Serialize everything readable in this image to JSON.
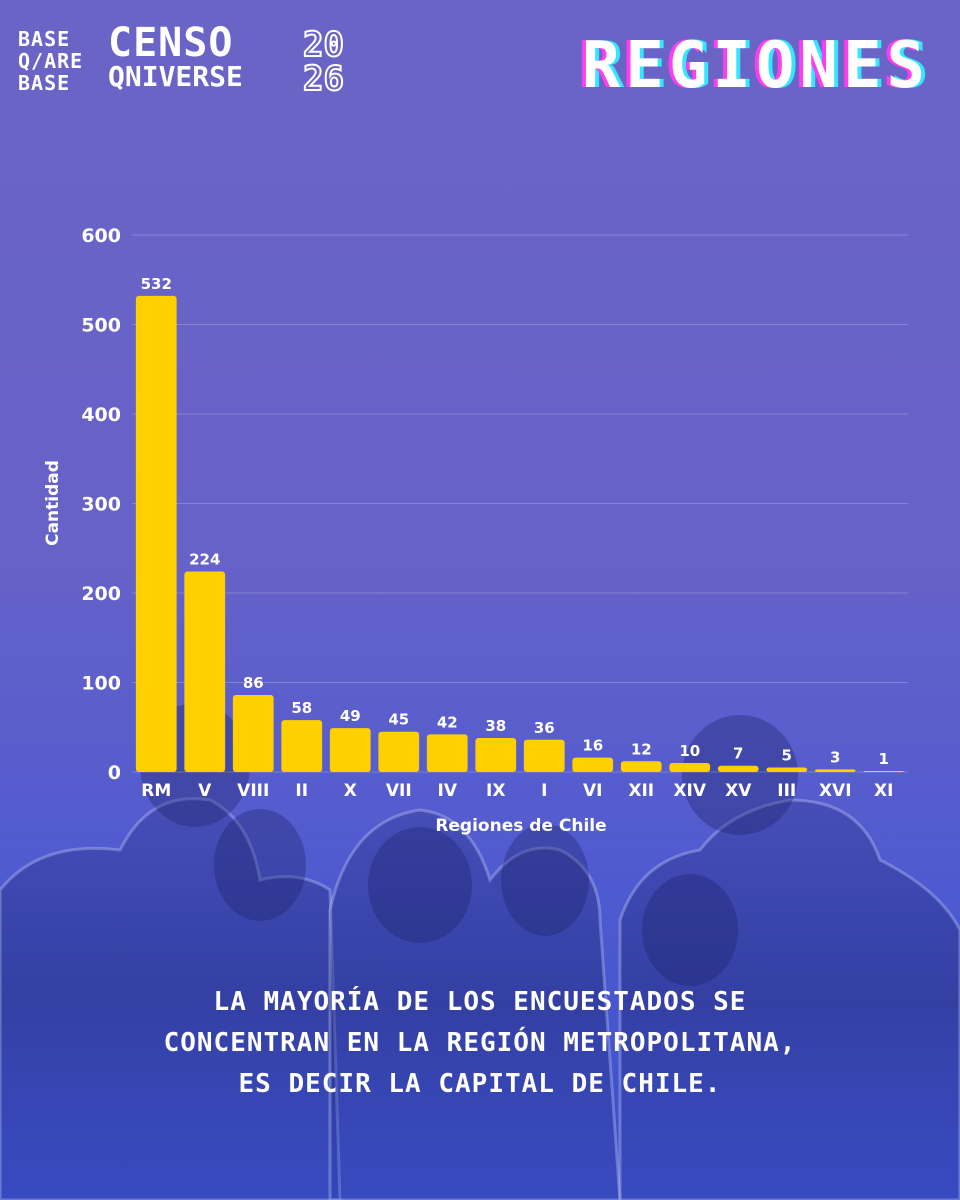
{
  "logo": {
    "small_lines": [
      "BASE",
      "Q/ARE",
      "BASE"
    ],
    "line1": "CENSO",
    "line2": "QNIVERSE",
    "year_top": "20",
    "year_bottom": "26"
  },
  "header": {
    "title": "REGIONES"
  },
  "chart_data": {
    "type": "bar",
    "xlabel": "Regiones de Chile",
    "ylabel": "Cantidad",
    "ylim": [
      0,
      600
    ],
    "yticks": [
      0,
      100,
      200,
      300,
      400,
      500,
      600
    ],
    "grid": true,
    "categories": [
      "RM",
      "V",
      "VIII",
      "II",
      "X",
      "VII",
      "IV",
      "IX",
      "I",
      "VI",
      "XII",
      "XIV",
      "XV",
      "III",
      "XVI",
      "XI"
    ],
    "values": [
      532,
      224,
      86,
      58,
      49,
      45,
      42,
      38,
      36,
      16,
      12,
      10,
      7,
      5,
      3,
      1
    ],
    "bar_color": "#ffd000"
  },
  "footer": {
    "lines": [
      "La mayoría de los encuestados se",
      "concentran en la región metropolitana,",
      "es decir la capital de Chile."
    ]
  }
}
